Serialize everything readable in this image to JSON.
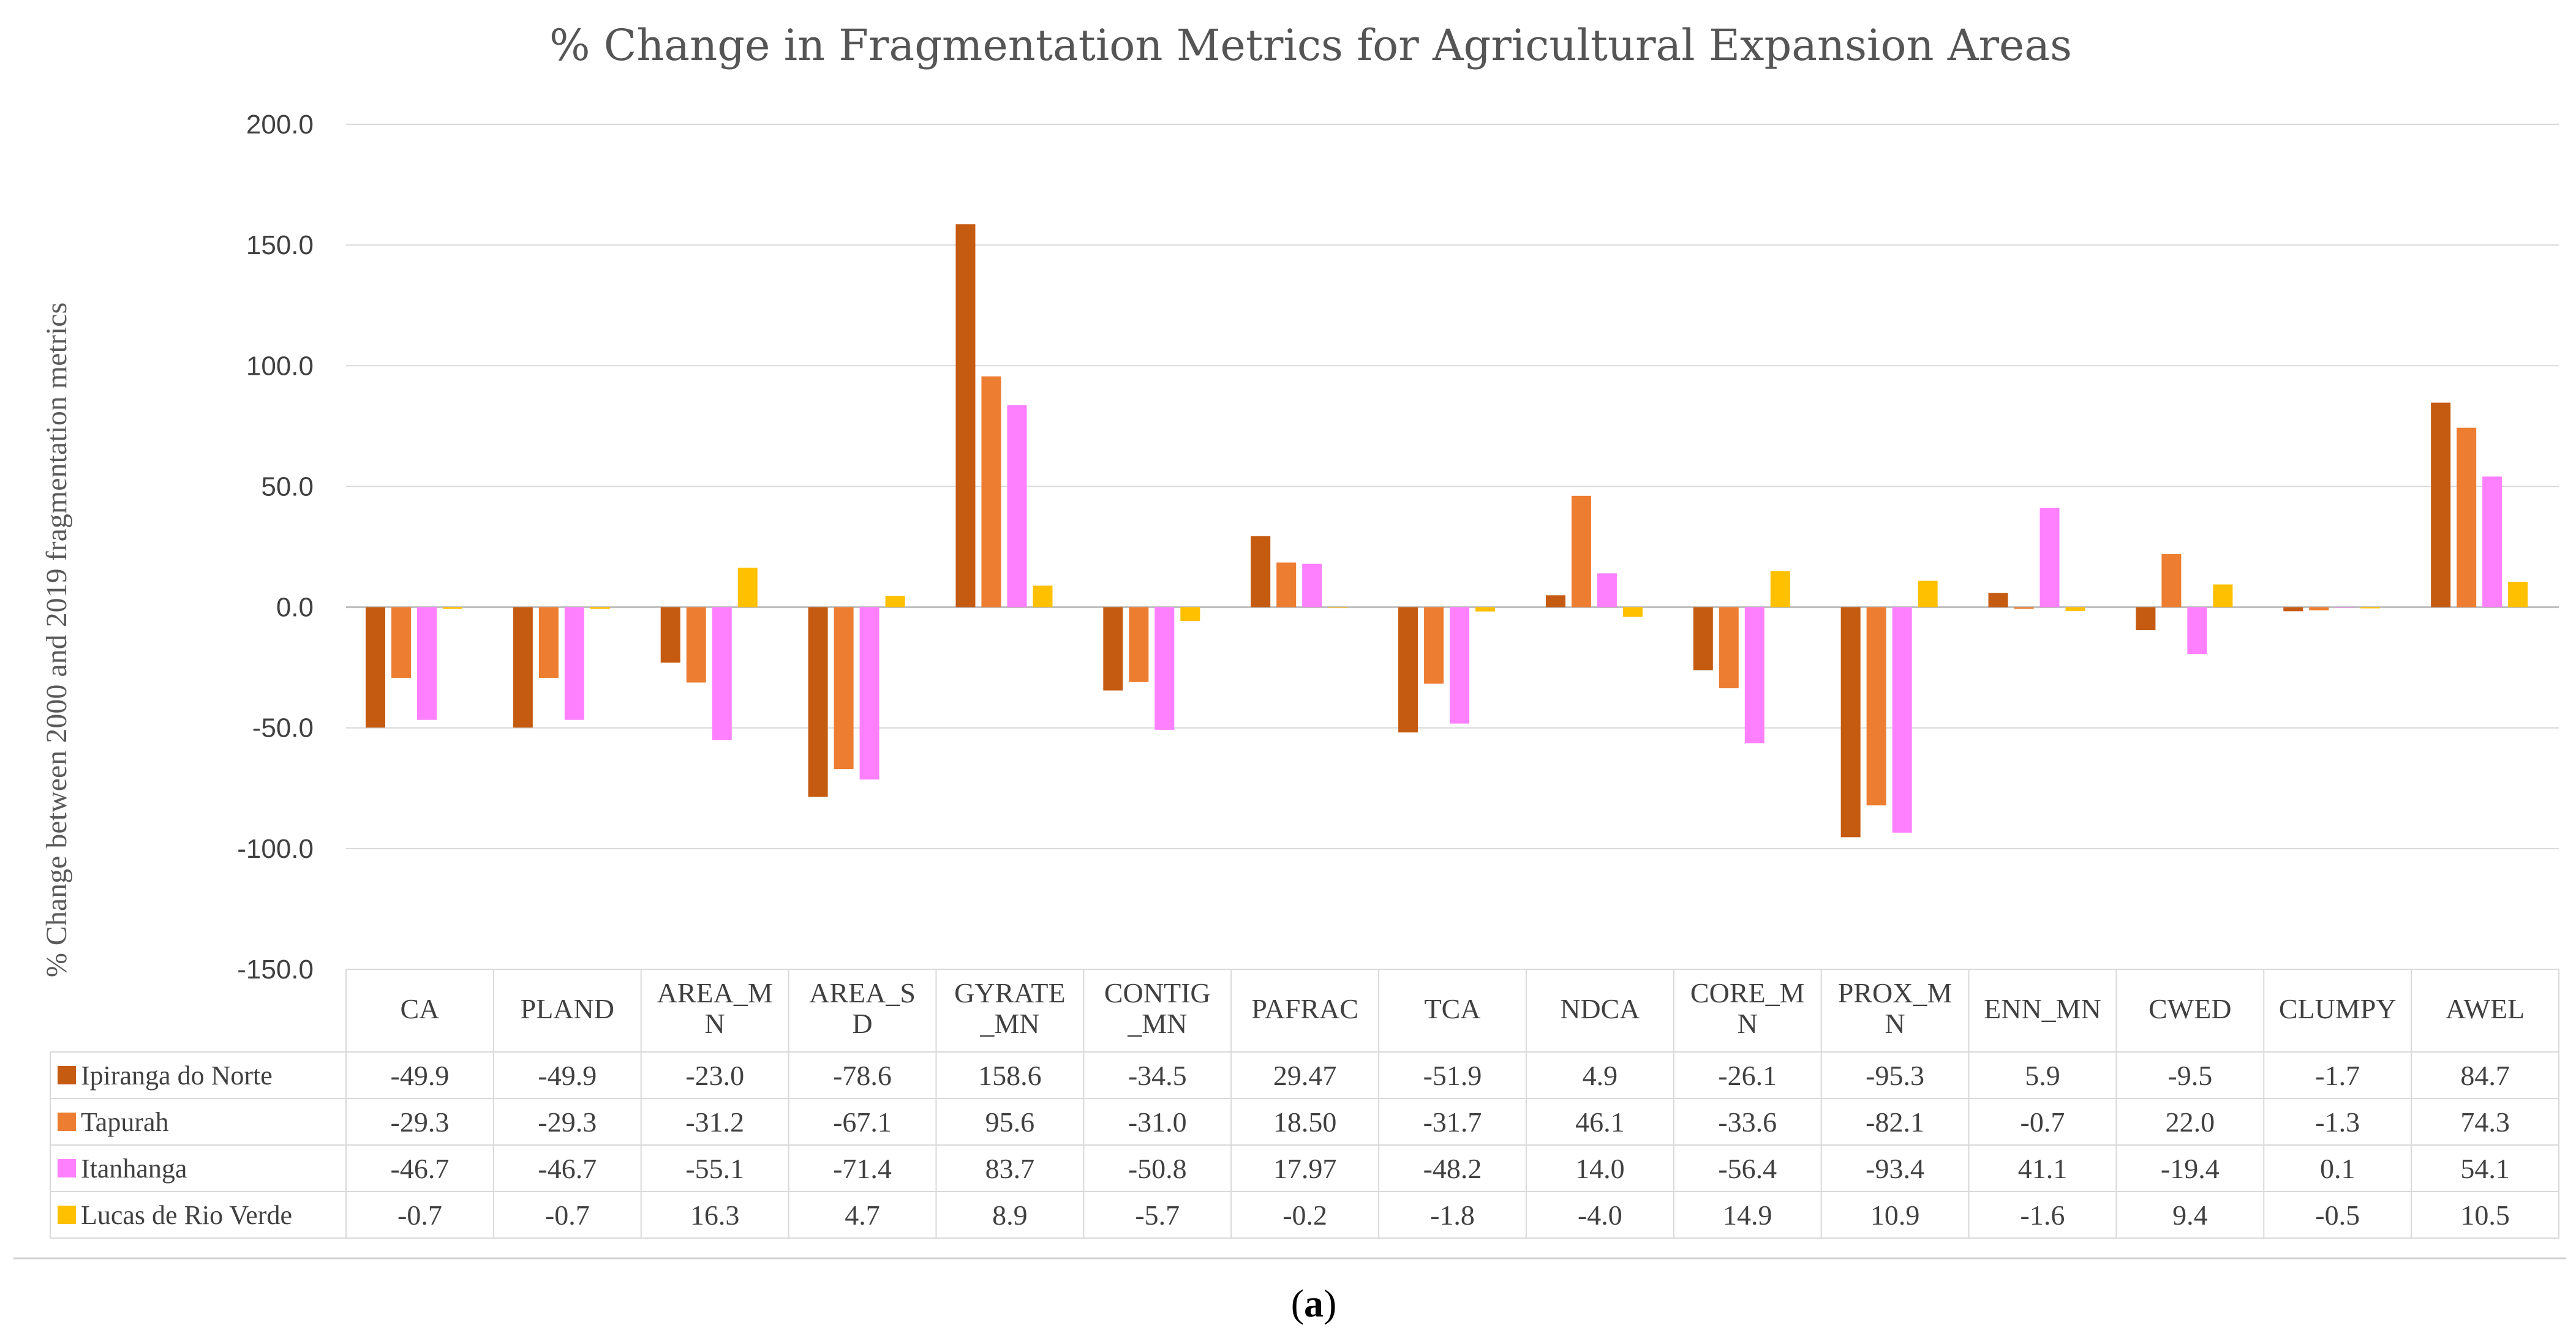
{
  "caption": {
    "open": "(",
    "letter": "a",
    "close": ")"
  },
  "chart_data": {
    "type": "bar",
    "title": "% Change in Fragmentation Metrics for Agricultural Expansion Areas",
    "ylabel": "% Change between 2000 and 2019 fragmentation metrics",
    "xlabel": "",
    "ylim": [
      -150,
      200
    ],
    "yticks": [
      -150,
      -100,
      -50,
      0,
      50,
      100,
      150,
      200
    ],
    "ytick_labels": [
      "-150.0",
      "-100.0",
      "-50.0",
      "0.0",
      "50.0",
      "100.0",
      "150.0",
      "200.0"
    ],
    "grid": true,
    "legend_position": "data table rows",
    "categories": [
      [
        "CA"
      ],
      [
        "PLAND"
      ],
      [
        "AREA_M",
        "N"
      ],
      [
        "AREA_S",
        "D"
      ],
      [
        "GYRATE",
        "_MN"
      ],
      [
        "CONTIG",
        "_MN"
      ],
      [
        "PAFRAC"
      ],
      [
        "TCA"
      ],
      [
        "NDCA"
      ],
      [
        "CORE_M",
        "N"
      ],
      [
        "PROX_M",
        "N"
      ],
      [
        "ENN_MN"
      ],
      [
        "CWED"
      ],
      [
        "CLUMPY"
      ],
      [
        "AWEL"
      ]
    ],
    "series": [
      {
        "name": "Ipiranga do Norte",
        "color": "#C55A11",
        "values": [
          -49.9,
          -49.9,
          -23.0,
          -78.6,
          158.6,
          -34.5,
          29.47,
          -51.9,
          4.9,
          -26.1,
          -95.3,
          5.9,
          -9.5,
          -1.7,
          84.7
        ],
        "labels": [
          "-49.9",
          "-49.9",
          "-23.0",
          "-78.6",
          "158.6",
          "-34.5",
          "29.47",
          "-51.9",
          "4.9",
          "-26.1",
          "-95.3",
          "5.9",
          "-9.5",
          "-1.7",
          "84.7"
        ]
      },
      {
        "name": "Tapurah",
        "color": "#ED7D31",
        "values": [
          -29.3,
          -29.3,
          -31.2,
          -67.1,
          95.6,
          -31.0,
          18.5,
          -31.7,
          46.1,
          -33.6,
          -82.1,
          -0.7,
          22.0,
          -1.3,
          74.3
        ],
        "labels": [
          "-29.3",
          "-29.3",
          "-31.2",
          "-67.1",
          "95.6",
          "-31.0",
          "18.50",
          "-31.7",
          "46.1",
          "-33.6",
          "-82.1",
          "-0.7",
          "22.0",
          "-1.3",
          "74.3"
        ]
      },
      {
        "name": "Itanhanga",
        "color": "#FF80FF",
        "values": [
          -46.7,
          -46.7,
          -55.1,
          -71.4,
          83.7,
          -50.8,
          17.97,
          -48.2,
          14.0,
          -56.4,
          -93.4,
          41.1,
          -19.4,
          0.1,
          54.1
        ],
        "labels": [
          "-46.7",
          "-46.7",
          "-55.1",
          "-71.4",
          "83.7",
          "-50.8",
          "17.97",
          "-48.2",
          "14.0",
          "-56.4",
          "-93.4",
          "41.1",
          "-19.4",
          "0.1",
          "54.1"
        ]
      },
      {
        "name": "Lucas de Rio Verde",
        "color": "#FFC000",
        "values": [
          -0.7,
          -0.7,
          16.3,
          4.7,
          8.9,
          -5.7,
          -0.2,
          -1.8,
          -4.0,
          14.9,
          10.9,
          -1.6,
          9.4,
          -0.5,
          10.5
        ],
        "labels": [
          "-0.7",
          "-0.7",
          "16.3",
          "4.7",
          "8.9",
          "-5.7",
          "-0.2",
          "-1.8",
          "-4.0",
          "14.9",
          "10.9",
          "-1.6",
          "9.4",
          "-0.5",
          "10.5"
        ]
      }
    ]
  }
}
